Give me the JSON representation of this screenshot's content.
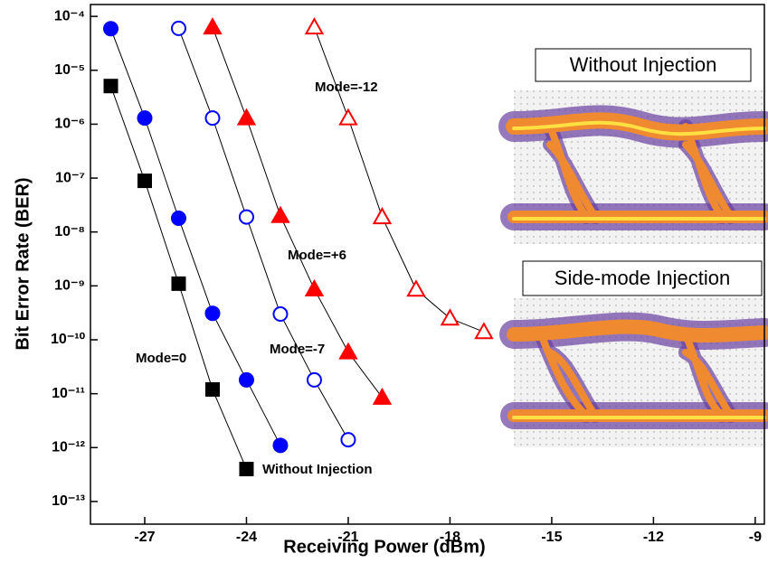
{
  "chart_data": {
    "type": "scatter",
    "log_y": true,
    "x_label": "Receiving Power (dBm)",
    "y_label": "Bit Error Rate (BER)",
    "xlim": [
      -28.6,
      -8.73
    ],
    "ylim": [
      3.8e-14,
      0.000166
    ],
    "xticks": [
      -27,
      -24,
      -21,
      -18,
      -15,
      -12,
      -9
    ],
    "yticks": [
      {
        "value": 0.0001,
        "label": "10⁻⁴"
      },
      {
        "value": 1e-05,
        "label": "10⁻⁵"
      },
      {
        "value": 1e-06,
        "label": "10⁻⁶"
      },
      {
        "value": 1e-07,
        "label": "10⁻⁷"
      },
      {
        "value": 1e-08,
        "label": "10⁻⁸"
      },
      {
        "value": 1e-09,
        "label": "10⁻⁹"
      },
      {
        "value": 1e-10,
        "label": "10⁻¹⁰"
      },
      {
        "value": 1e-11,
        "label": "10⁻¹¹"
      },
      {
        "value": 1e-12,
        "label": "10⁻¹²"
      },
      {
        "value": 1e-13,
        "label": "10⁻¹³"
      }
    ],
    "series": [
      {
        "name": "Without Injection",
        "color": "#000000",
        "marker": "square",
        "filled": true,
        "x": [
          -28,
          -27,
          -26,
          -25,
          -24
        ],
        "values": [
          5.1e-06,
          8.9e-08,
          1.1e-09,
          1.2e-11,
          4e-13
        ]
      },
      {
        "name": "Mode=0",
        "color": "#0000ff",
        "marker": "circle",
        "filled": true,
        "x": [
          -28,
          -27,
          -26,
          -25,
          -24,
          -23
        ],
        "values": [
          5.9e-05,
          1.3e-06,
          1.8e-08,
          3.1e-10,
          1.8e-11,
          1.1e-12
        ]
      },
      {
        "name": "Mode=-7",
        "color": "#0000ff",
        "marker": "circle",
        "filled": false,
        "x": [
          -26,
          -25,
          -24,
          -23,
          -22,
          -21
        ],
        "values": [
          6e-05,
          1.3e-06,
          1.9e-08,
          3e-10,
          1.8e-11,
          1.4e-12
        ]
      },
      {
        "name": "Mode=+6",
        "color": "#ff0000",
        "marker": "triangle",
        "filled": true,
        "x": [
          -25,
          -24,
          -23,
          -22,
          -21,
          -20
        ],
        "values": [
          6.3e-05,
          1.3e-06,
          2e-08,
          8.7e-10,
          5.9e-11,
          8.5e-12
        ]
      },
      {
        "name": "Mode=-12",
        "color": "#ff0000",
        "marker": "triangle",
        "filled": false,
        "x": [
          -22,
          -21,
          -20,
          -19,
          -18,
          -17
        ],
        "values": [
          6.3e-05,
          1.3e-06,
          1.9e-08,
          8.6e-10,
          2.5e-10,
          1.4e-10
        ]
      }
    ],
    "inset_titles": [
      "Without Injection",
      "Side-mode Injection"
    ]
  }
}
